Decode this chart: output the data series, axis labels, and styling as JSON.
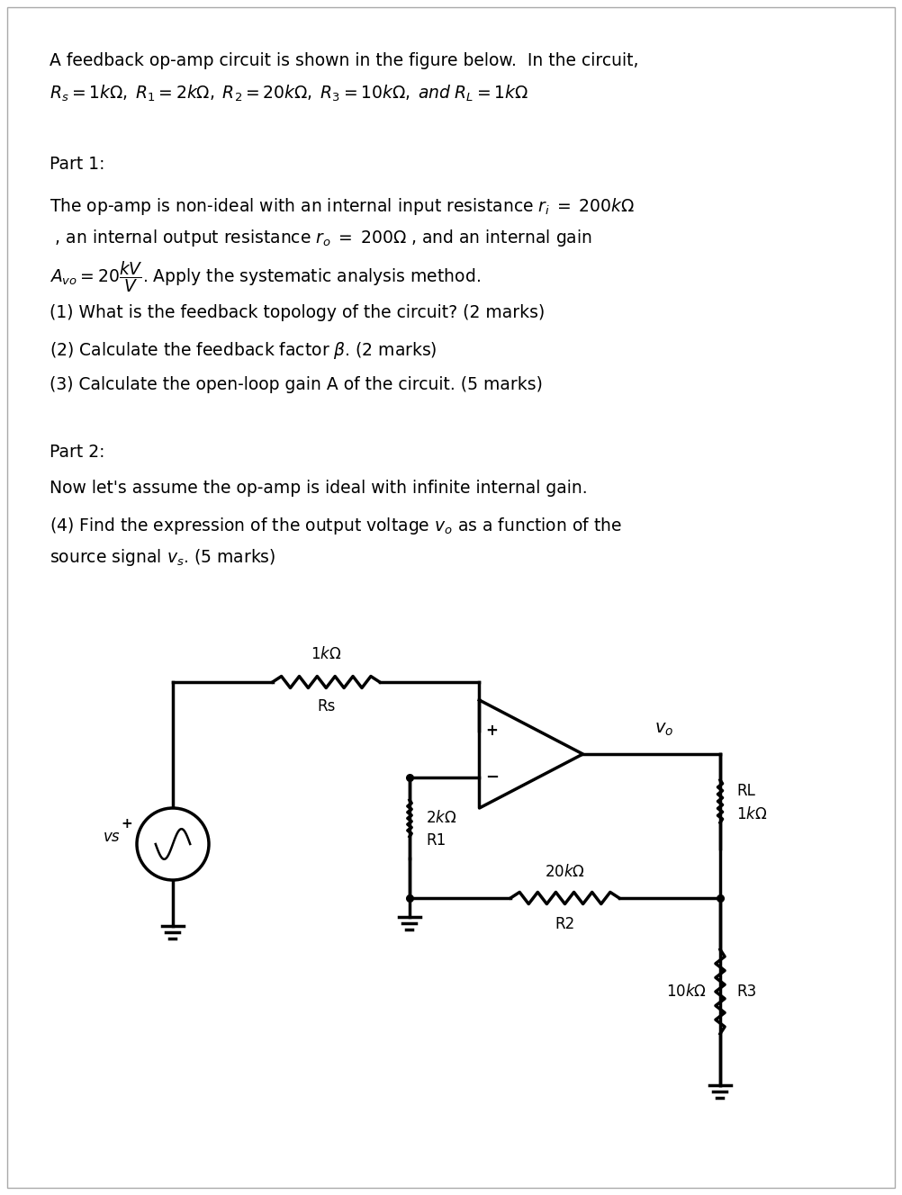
{
  "title_line1": "A feedback op-amp circuit is shown in the figure below.  In the circuit,",
  "title_line2": "$R_s = 1k\\Omega,\\;  R_1 = 2k\\Omega,\\;  R_2 = 20k\\Omega,\\;  R_3 = 10k\\Omega,\\;  and\\;  R_L = 1k\\Omega$",
  "part1_label": "Part 1:",
  "part1_text1": "The op-amp is non-ideal with an internal input resistance $r_i \\;=\\; 200k\\Omega$",
  "part1_text2": " , an internal output resistance $r_o \\;=\\; 200\\Omega$ , and an internal gain",
  "part1_text3": "$A_{vo} = 20\\dfrac{kV}{V}$. Apply the systematic analysis method.",
  "q1": "(1) What is the feedback topology of the circuit? (2 marks)",
  "q2": "(2) Calculate the feedback factor $\\beta$. (2 marks)",
  "q3": "(3) Calculate the open-loop gain A of the circuit. (5 marks)",
  "part2_label": "Part 2:",
  "part2_text1": "Now let's assume the op-amp is ideal with infinite internal gain.",
  "q4_line1": "(4) Find the expression of the output voltage $v_o$ as a function of the",
  "q4_line2": "source signal $v_s$. (5 marks)",
  "bg_color": "#ffffff",
  "text_color": "#000000"
}
